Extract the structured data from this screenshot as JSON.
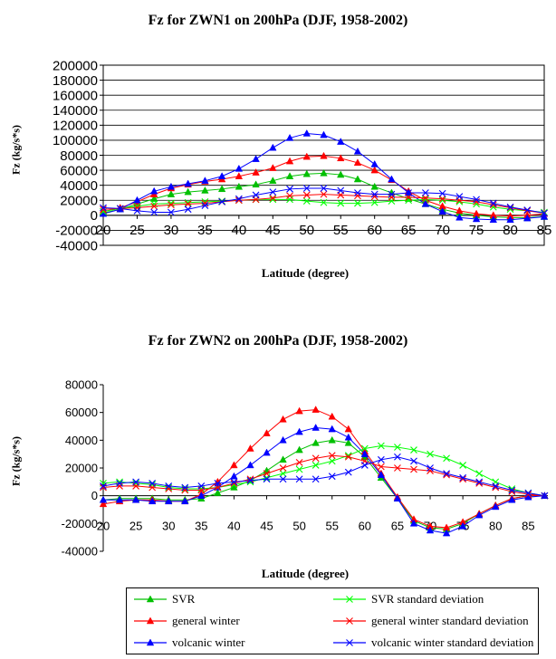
{
  "chart_data": [
    {
      "type": "line",
      "title": "Fz for ZWN1 on 200hPa (DJF, 1958-2002)",
      "xlabel": "Latitude (degree)",
      "ylabel": "Fz (kg/s*s)",
      "xlim": [
        20,
        85
      ],
      "ylim": [
        -40000,
        200000
      ],
      "xticks": [
        "20",
        "25",
        "30",
        "35",
        "40",
        "45",
        "50",
        "55",
        "60",
        "65",
        "70",
        "75",
        "80",
        "85"
      ],
      "yticks": [
        "200000",
        "180000",
        "160000",
        "140000",
        "120000",
        "100000",
        "80000",
        "60000",
        "40000",
        "20000",
        "0",
        "-20000",
        "-40000"
      ],
      "grid": "horizontal",
      "x": [
        20,
        22.5,
        25,
        27.5,
        30,
        32.5,
        35,
        37.5,
        40,
        42.5,
        45,
        47.5,
        50,
        52.5,
        55,
        57.5,
        60,
        62.5,
        65,
        67.5,
        70,
        72.5,
        75,
        77.5,
        80,
        82.5,
        85
      ],
      "series": [
        {
          "name": "SVR",
          "color": "#00c000",
          "marker": "triangle",
          "values": [
            3000,
            8000,
            15000,
            22000,
            28000,
            31000,
            33000,
            35000,
            38000,
            41000,
            46000,
            52000,
            55000,
            56000,
            54000,
            48000,
            38000,
            30000,
            22000,
            15000,
            8000,
            3000,
            0,
            -2000,
            -3000,
            -3000,
            -2000
          ]
        },
        {
          "name": "general winter",
          "color": "#ff0000",
          "marker": "triangle",
          "values": [
            5000,
            10000,
            18000,
            28000,
            36000,
            41000,
            45000,
            48000,
            52000,
            57000,
            63000,
            72000,
            78000,
            79000,
            76000,
            70000,
            60000,
            47000,
            32000,
            20000,
            12000,
            6000,
            2000,
            0,
            -1000,
            0,
            2000
          ]
        },
        {
          "name": "volcanic winter",
          "color": "#0000ff",
          "marker": "triangle",
          "values": [
            2000,
            8000,
            20000,
            32000,
            38000,
            42000,
            46000,
            52000,
            62000,
            75000,
            90000,
            103000,
            109000,
            107000,
            98000,
            85000,
            68000,
            48000,
            30000,
            15000,
            5000,
            -3000,
            -5000,
            -6000,
            -6000,
            -4000,
            -2000
          ]
        },
        {
          "name": "SVR standard deviation",
          "color": "#00ff00",
          "marker": "x",
          "values": [
            5000,
            9000,
            12000,
            15000,
            16000,
            17000,
            18000,
            19000,
            20000,
            21000,
            21000,
            21000,
            19000,
            17000,
            16000,
            16000,
            17000,
            19000,
            20000,
            21000,
            20000,
            18000,
            15000,
            11000,
            8000,
            6000,
            4000
          ]
        },
        {
          "name": "general winter standard deviation",
          "color": "#ff0000",
          "marker": "x",
          "values": [
            8000,
            9000,
            10000,
            12000,
            14000,
            15000,
            16000,
            18000,
            20000,
            21000,
            23000,
            26000,
            27000,
            28000,
            27000,
            26000,
            25000,
            24000,
            24000,
            23000,
            22000,
            20000,
            18000,
            14000,
            10000,
            6000,
            3000
          ]
        },
        {
          "name": "volcanic winter standard deviation",
          "color": "#0000ff",
          "marker": "x",
          "values": [
            10000,
            9000,
            6000,
            4000,
            4000,
            8000,
            13000,
            18000,
            22000,
            27000,
            31000,
            35000,
            36000,
            36000,
            33000,
            30000,
            28000,
            28000,
            30000,
            30000,
            29000,
            25000,
            21000,
            16000,
            11000,
            7000,
            3000
          ]
        }
      ]
    },
    {
      "type": "line",
      "title": "Fz for ZWN2 on 200hPa (DJF, 1958-2002)",
      "xlabel": "Latitude (degree)",
      "ylabel": "Fz (kg/s*s)",
      "xlim": [
        20,
        88
      ],
      "ylim": [
        -40000,
        80000
      ],
      "xticks": [
        "20",
        "25",
        "30",
        "35",
        "40",
        "45",
        "50",
        "55",
        "60",
        "65",
        "70",
        "75",
        "80",
        "85"
      ],
      "yticks": [
        "80000",
        "60000",
        "40000",
        "20000",
        "0",
        "-20000",
        "-40000"
      ],
      "grid": "none",
      "x": [
        20,
        22.5,
        25,
        27.5,
        30,
        32.5,
        35,
        37.5,
        40,
        42.5,
        45,
        47.5,
        50,
        52.5,
        55,
        57.5,
        60,
        62.5,
        65,
        67.5,
        70,
        72.5,
        75,
        77.5,
        80,
        82.5,
        85,
        87.5
      ],
      "series": [
        {
          "name": "SVR",
          "color": "#00c000",
          "marker": "triangle",
          "values": [
            -3000,
            -2000,
            -2000,
            -2000,
            -3000,
            -3000,
            -2000,
            2000,
            6000,
            11000,
            18000,
            26000,
            33000,
            38000,
            40000,
            38000,
            28000,
            13000,
            -2000,
            -18000,
            -23000,
            -24000,
            -20000,
            -13000,
            -7000,
            -2000,
            0,
            0
          ]
        },
        {
          "name": "general winter",
          "color": "#ff0000",
          "marker": "triangle",
          "values": [
            -6000,
            -4000,
            -3000,
            -3000,
            -4000,
            -4000,
            1000,
            10000,
            22000,
            34000,
            45000,
            55000,
            61000,
            62000,
            57000,
            48000,
            32000,
            16000,
            -1000,
            -17000,
            -22000,
            -23000,
            -19000,
            -13000,
            -7000,
            -2000,
            0,
            0
          ]
        },
        {
          "name": "volcanic winter",
          "color": "#0000ff",
          "marker": "triangle",
          "values": [
            -3000,
            -3000,
            -3000,
            -4000,
            -4000,
            -4000,
            0,
            6000,
            14000,
            22000,
            31000,
            40000,
            46000,
            49000,
            48000,
            42000,
            30000,
            15000,
            -2000,
            -20000,
            -25000,
            -27000,
            -22000,
            -14000,
            -8000,
            -3000,
            -1000,
            0
          ]
        },
        {
          "name": "SVR standard deviation",
          "color": "#00ff00",
          "marker": "x",
          "values": [
            9000,
            10000,
            9000,
            8000,
            6000,
            5000,
            5000,
            6000,
            8000,
            10000,
            13000,
            16000,
            19000,
            22000,
            25000,
            29000,
            34000,
            36000,
            35000,
            33000,
            30000,
            27000,
            22000,
            16000,
            10000,
            5000,
            2000,
            0
          ]
        },
        {
          "name": "general winter standard deviation",
          "color": "#ff0000",
          "marker": "x",
          "values": [
            6000,
            7000,
            7000,
            6000,
            5000,
            4000,
            4000,
            6000,
            9000,
            12000,
            16000,
            20000,
            24000,
            27000,
            29000,
            28000,
            25000,
            21000,
            20000,
            19000,
            18000,
            15000,
            12000,
            9000,
            6000,
            3000,
            1000,
            0
          ]
        },
        {
          "name": "volcanic winter standard deviation",
          "color": "#0000ff",
          "marker": "x",
          "values": [
            7000,
            9000,
            10000,
            9000,
            7000,
            6000,
            7000,
            9000,
            10000,
            11000,
            12000,
            12000,
            12000,
            12000,
            14000,
            17000,
            22000,
            26000,
            28000,
            25000,
            20000,
            16000,
            13000,
            10000,
            7000,
            4000,
            2000,
            0
          ]
        }
      ]
    }
  ],
  "legend": [
    {
      "label": "SVR",
      "color": "#00c000",
      "marker": "triangle"
    },
    {
      "label": "SVR standard deviation",
      "color": "#00ff00",
      "marker": "x"
    },
    {
      "label": "general winter",
      "color": "#ff0000",
      "marker": "triangle"
    },
    {
      "label": "general winter standard deviation",
      "color": "#ff0000",
      "marker": "x"
    },
    {
      "label": "volcanic winter",
      "color": "#0000ff",
      "marker": "triangle"
    },
    {
      "label": "volcanic winter standard deviation",
      "color": "#0000ff",
      "marker": "x"
    }
  ]
}
